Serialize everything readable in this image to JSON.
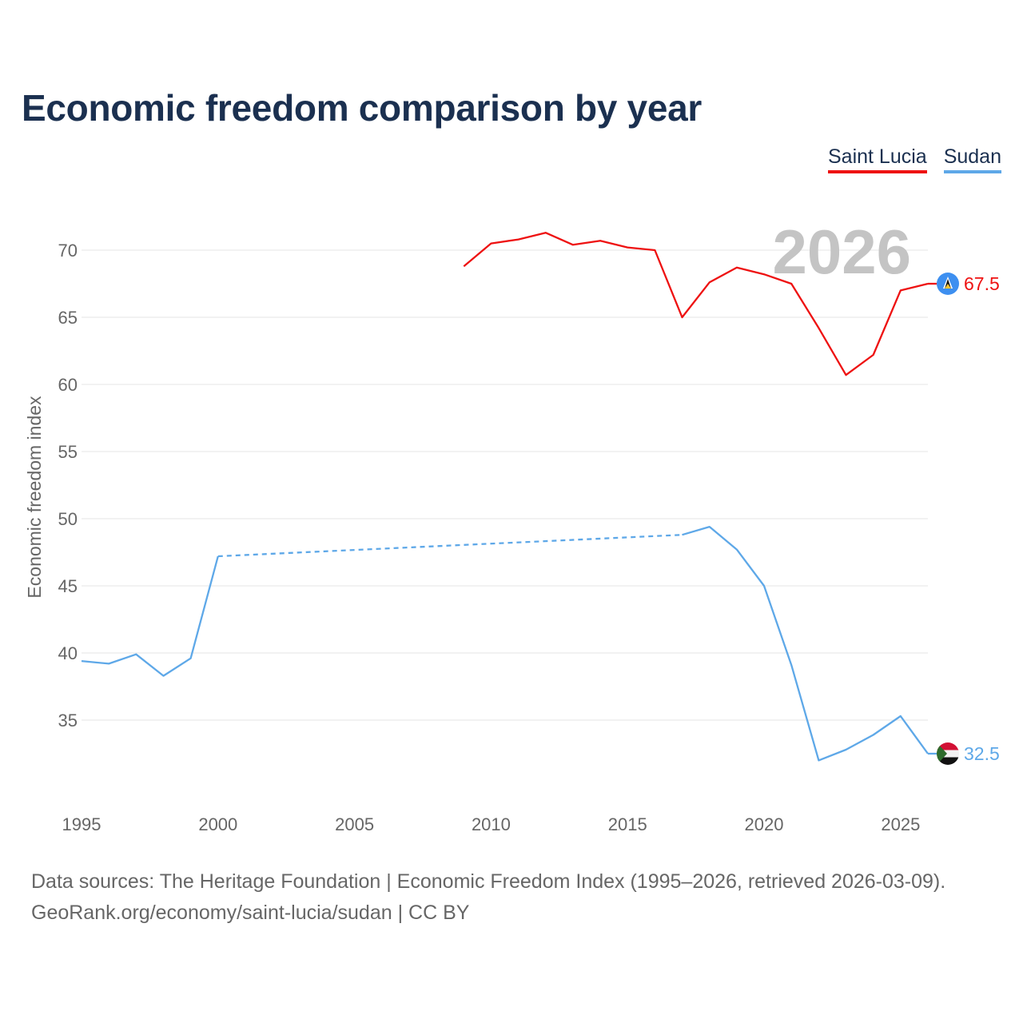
{
  "title": "Economic freedom comparison by year",
  "legend": [
    {
      "label": "Saint Lucia",
      "color": "#ee1111"
    },
    {
      "label": "Sudan",
      "color": "#5ea8e8"
    }
  ],
  "year_watermark": "2026",
  "footer": {
    "line1": "Data sources: The Heritage Foundation | Economic Freedom Index (1995–2026, retrieved 2026-03-09).",
    "line2": "GeoRank.org/economy/saint-lucia/sudan | CC BY"
  },
  "chart_data": {
    "type": "line",
    "title": "Economic freedom comparison by year",
    "xlabel": "",
    "ylabel": "Economic freedom index",
    "xlim": [
      1995,
      2026
    ],
    "ylim": [
      30,
      72
    ],
    "xticks": [
      1995,
      2000,
      2005,
      2010,
      2015,
      2020,
      2025
    ],
    "yticks": [
      35,
      40,
      45,
      50,
      55,
      60,
      65,
      70
    ],
    "grid": true,
    "legend_position": "top-right",
    "series": [
      {
        "name": "Saint Lucia",
        "color": "#ee1111",
        "end_label": "67.5",
        "flag_icon": "saint-lucia-flag-icon",
        "points": [
          [
            2009,
            68.8
          ],
          [
            2010,
            70.5
          ],
          [
            2011,
            70.8
          ],
          [
            2012,
            71.3
          ],
          [
            2013,
            70.4
          ],
          [
            2014,
            70.7
          ],
          [
            2015,
            70.2
          ],
          [
            2016,
            70.0
          ],
          [
            2017,
            65.0
          ],
          [
            2018,
            67.6
          ],
          [
            2019,
            68.7
          ],
          [
            2020,
            68.2
          ],
          [
            2021,
            67.5
          ],
          [
            2022,
            64.2
          ],
          [
            2023,
            60.7
          ],
          [
            2024,
            62.2
          ],
          [
            2025,
            67.0
          ],
          [
            2026,
            67.5
          ]
        ],
        "gaps": []
      },
      {
        "name": "Sudan",
        "color": "#5ea8e8",
        "end_label": "32.5",
        "flag_icon": "sudan-flag-icon",
        "points": [
          [
            1995,
            39.4
          ],
          [
            1996,
            39.2
          ],
          [
            1997,
            39.9
          ],
          [
            1998,
            38.3
          ],
          [
            1999,
            39.6
          ],
          [
            2000,
            47.2
          ],
          [
            2017,
            48.8
          ],
          [
            2018,
            49.4
          ],
          [
            2019,
            47.7
          ],
          [
            2020,
            45.0
          ],
          [
            2021,
            39.1
          ],
          [
            2022,
            32.0
          ],
          [
            2023,
            32.8
          ],
          [
            2024,
            33.9
          ],
          [
            2025,
            35.3
          ],
          [
            2026,
            32.5
          ]
        ],
        "gaps": [
          [
            2000,
            2017
          ]
        ]
      }
    ]
  }
}
